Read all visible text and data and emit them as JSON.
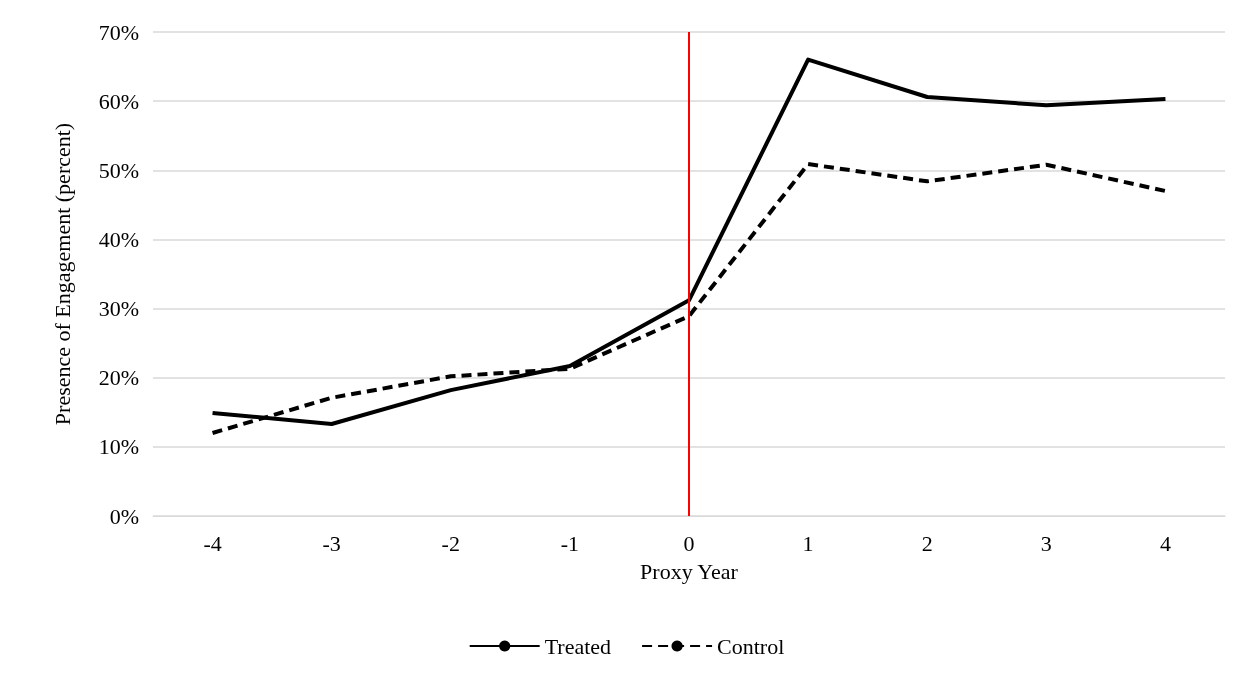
{
  "chart_data": {
    "type": "line",
    "xlabel": "Proxy Year",
    "ylabel": "Presence of Engagement (percent)",
    "x": [
      -4,
      -3,
      -2,
      -1,
      0,
      1,
      2,
      3,
      4
    ],
    "xlim": [
      -4.5,
      4.5
    ],
    "xticks": [
      -4,
      -3,
      -2,
      -1,
      0,
      1,
      2,
      3,
      4
    ],
    "ylim": [
      0,
      70
    ],
    "yticks": [
      {
        "value": 0,
        "label": "0%"
      },
      {
        "value": 10,
        "label": "10%"
      },
      {
        "value": 20,
        "label": "20%"
      },
      {
        "value": 30,
        "label": "30%"
      },
      {
        "value": 40,
        "label": "40%"
      },
      {
        "value": 50,
        "label": "50%"
      },
      {
        "value": 60,
        "label": "60%"
      },
      {
        "value": 70,
        "label": "70%"
      }
    ],
    "series": [
      {
        "name": "Treated",
        "color": "#000000",
        "line_style": "solid",
        "values": [
          14.9,
          13.3,
          18.2,
          21.7,
          31.2,
          66.0,
          60.6,
          59.4,
          60.3
        ]
      },
      {
        "name": "Control",
        "color": "#000000",
        "line_style": "dashed",
        "values": [
          12.0,
          17.1,
          20.2,
          21.3,
          28.9,
          50.9,
          48.4,
          50.8,
          47.0
        ]
      }
    ],
    "ref_lines": [
      {
        "axis": "x",
        "value": 0,
        "color": "#ff0000",
        "line_style": "solid"
      }
    ],
    "grid": "y",
    "legend": "bottom",
    "marker": "none"
  }
}
